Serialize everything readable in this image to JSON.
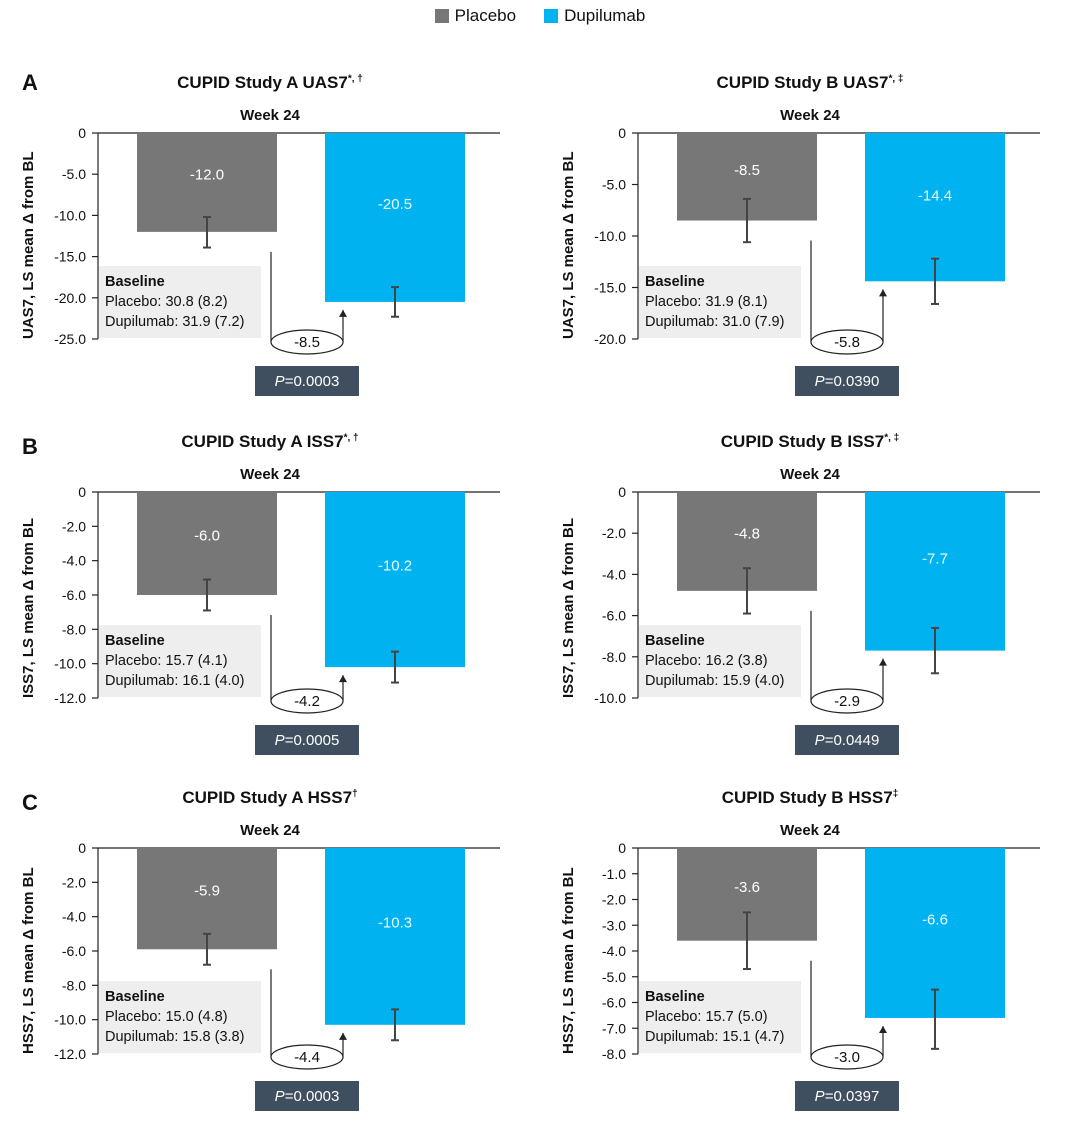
{
  "legend": [
    {
      "name": "Placebo",
      "color": "#777777"
    },
    {
      "name": "Dupilumab",
      "color": "#00b2ef"
    }
  ],
  "rows": [
    "A",
    "B",
    "C"
  ],
  "chart_data": [
    {
      "type": "bar",
      "title": "CUPID Study A UAS7",
      "title_marks": "*, †",
      "subtitle": "Week 24",
      "ylabel": "UAS7, LS mean Δ from BL",
      "categories": [
        "Placebo",
        "Dupilumab"
      ],
      "values": [
        -12.0,
        -20.5
      ],
      "value_labels": [
        "-12.0",
        "-20.5"
      ],
      "error": [
        [
          -13.9,
          -10.2
        ],
        [
          -22.3,
          -18.7
        ]
      ],
      "ylim": [
        -25.0,
        0
      ],
      "yticks": [
        "0",
        "-5.0",
        "-10.0",
        "-15.0",
        "-20.0",
        "-25.0"
      ],
      "ytick_values": [
        0,
        -5,
        -10,
        -15,
        -20,
        -25
      ],
      "difference": "-8.5",
      "p_prefix": "P",
      "p_value": "=0.0003",
      "baseline_title": "Baseline",
      "baseline_placebo": "Placebo: 30.8 (8.2)",
      "baseline_dupilumab": "Dupilumab: 31.9 (7.2)"
    },
    {
      "type": "bar",
      "title": "CUPID Study B UAS7",
      "title_marks": "*, ‡",
      "subtitle": "Week 24",
      "ylabel": "UAS7, LS mean Δ from BL",
      "categories": [
        "Placebo",
        "Dupilumab"
      ],
      "values": [
        -8.5,
        -14.4
      ],
      "value_labels": [
        "-8.5",
        "-14.4"
      ],
      "error": [
        [
          -10.6,
          -6.4
        ],
        [
          -16.6,
          -12.2
        ]
      ],
      "ylim": [
        -20.0,
        0
      ],
      "yticks": [
        "0",
        "-5.0",
        "-10.0",
        "-15.0",
        "-20.0"
      ],
      "ytick_values": [
        0,
        -5,
        -10,
        -15,
        -20
      ],
      "difference": "-5.8",
      "p_prefix": "P",
      "p_value": "=0.0390",
      "baseline_title": "Baseline",
      "baseline_placebo": "Placebo: 31.9 (8.1)",
      "baseline_dupilumab": "Dupilumab: 31.0 (7.9)"
    },
    {
      "type": "bar",
      "title": "CUPID Study A ISS7",
      "title_marks": "*, †",
      "subtitle": "Week 24",
      "ylabel": "ISS7, LS mean Δ from BL",
      "categories": [
        "Placebo",
        "Dupilumab"
      ],
      "values": [
        -6.0,
        -10.2
      ],
      "value_labels": [
        "-6.0",
        "-10.2"
      ],
      "error": [
        [
          -6.9,
          -5.1
        ],
        [
          -11.1,
          -9.3
        ]
      ],
      "ylim": [
        -12.0,
        0
      ],
      "yticks": [
        "0",
        "-2.0",
        "-4.0",
        "-6.0",
        "-8.0",
        "-10.0",
        "-12.0"
      ],
      "ytick_values": [
        0,
        -2,
        -4,
        -6,
        -8,
        -10,
        -12
      ],
      "difference": "-4.2",
      "p_prefix": "P",
      "p_value": "=0.0005",
      "baseline_title": "Baseline",
      "baseline_placebo": "Placebo: 15.7 (4.1)",
      "baseline_dupilumab": "Dupilumab: 16.1 (4.0)"
    },
    {
      "type": "bar",
      "title": "CUPID Study B ISS7",
      "title_marks": "*, ‡",
      "subtitle": "Week 24",
      "ylabel": "ISS7, LS mean Δ from BL",
      "categories": [
        "Placebo",
        "Dupilumab"
      ],
      "values": [
        -4.8,
        -7.7
      ],
      "value_labels": [
        "-4.8",
        "-7.7"
      ],
      "error": [
        [
          -5.9,
          -3.7
        ],
        [
          -8.8,
          -6.6
        ]
      ],
      "ylim": [
        -10.0,
        0
      ],
      "yticks": [
        "0",
        "-2.0",
        "-4.0",
        "-6.0",
        "-8.0",
        "-10.0"
      ],
      "ytick_values": [
        0,
        -2,
        -4,
        -6,
        -8,
        -10
      ],
      "difference": "-2.9",
      "p_prefix": "P",
      "p_value": "=0.0449",
      "baseline_title": "Baseline",
      "baseline_placebo": "Placebo: 16.2 (3.8)",
      "baseline_dupilumab": "Dupilumab: 15.9 (4.0)"
    },
    {
      "type": "bar",
      "title": "CUPID Study A HSS7",
      "title_marks": "†",
      "subtitle": "Week 24",
      "ylabel": "HSS7, LS mean Δ from BL",
      "categories": [
        "Placebo",
        "Dupilumab"
      ],
      "values": [
        -5.9,
        -10.3
      ],
      "value_labels": [
        "-5.9",
        "-10.3"
      ],
      "error": [
        [
          -6.8,
          -5.0
        ],
        [
          -11.2,
          -9.4
        ]
      ],
      "ylim": [
        -12.0,
        0
      ],
      "yticks": [
        "0",
        "-2.0",
        "-4.0",
        "-6.0",
        "-8.0",
        "-10.0",
        "-12.0"
      ],
      "ytick_values": [
        0,
        -2,
        -4,
        -6,
        -8,
        -10,
        -12
      ],
      "difference": "-4.4",
      "p_prefix": "P",
      "p_value": "=0.0003",
      "baseline_title": "Baseline",
      "baseline_placebo": "Placebo: 15.0 (4.8)",
      "baseline_dupilumab": "Dupilumab: 15.8 (3.8)"
    },
    {
      "type": "bar",
      "title": "CUPID Study B HSS7",
      "title_marks": "‡",
      "subtitle": "Week 24",
      "ylabel": "HSS7, LS mean Δ from BL",
      "categories": [
        "Placebo",
        "Dupilumab"
      ],
      "values": [
        -3.6,
        -6.6
      ],
      "value_labels": [
        "-3.6",
        "-6.6"
      ],
      "error": [
        [
          -4.7,
          -2.5
        ],
        [
          -7.8,
          -5.5
        ]
      ],
      "ylim": [
        -8.0,
        0
      ],
      "yticks": [
        "0",
        "-1.0",
        "-2.0",
        "-3.0",
        "-4.0",
        "-5.0",
        "-6.0",
        "-7.0",
        "-8.0"
      ],
      "ytick_values": [
        0,
        -1,
        -2,
        -3,
        -4,
        -5,
        -6,
        -7,
        -8
      ],
      "difference": "-3.0",
      "p_prefix": "P",
      "p_value": "=0.0397",
      "baseline_title": "Baseline",
      "baseline_placebo": "Placebo: 15.7 (5.0)",
      "baseline_dupilumab": "Dupilumab: 15.1 (4.7)"
    }
  ]
}
